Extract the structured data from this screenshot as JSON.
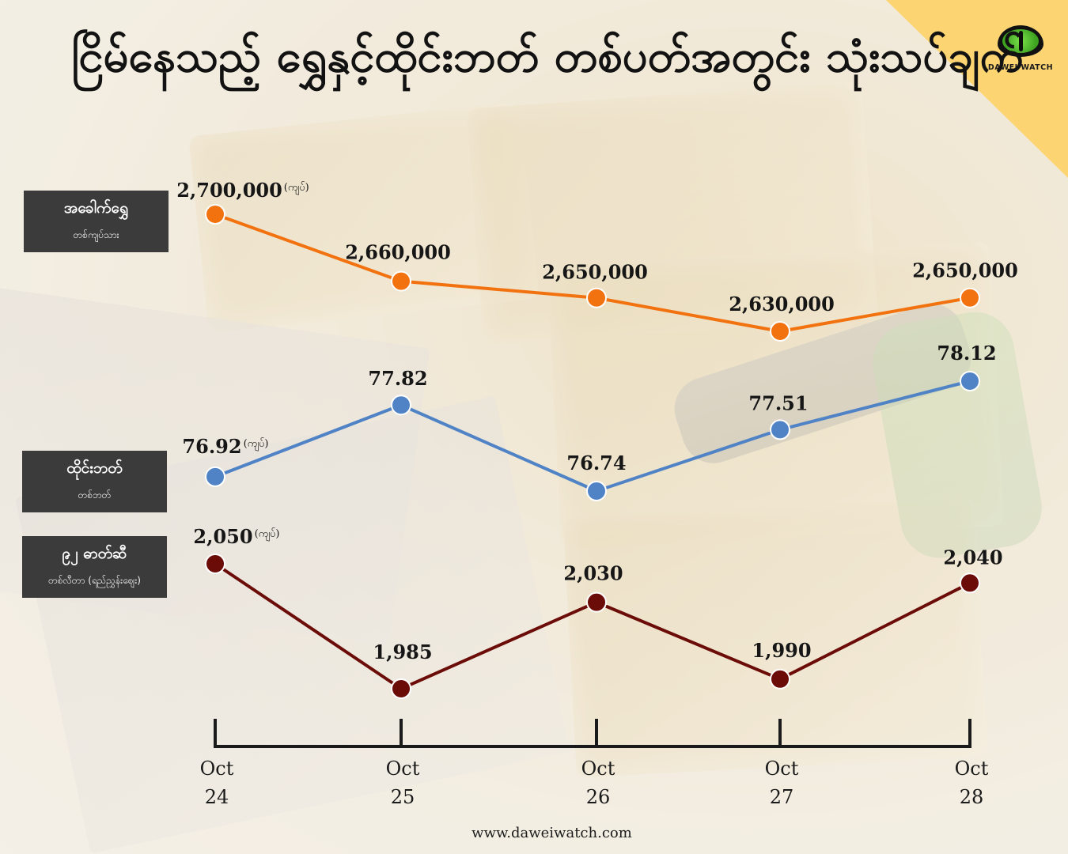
{
  "title": "ငြိမ်နေသည့် ရွှေနှင့်ထိုင်းဘတ် တစ်ပတ်အတွင်း သုံးသပ်ချက်",
  "brand": {
    "name": "DAWEI WATCH",
    "website": "www.daweiwatch.com",
    "accent_color": "#fcd572"
  },
  "unit_note": "(ကျပ်)",
  "series_boxes": [
    {
      "name": "အခေါက်ရွှေ",
      "unit": "တစ်ကျပ်သား"
    },
    {
      "name": "ထိုင်းဘတ်",
      "unit": "တစ်ဘတ်"
    },
    {
      "name": "၉၂ ဓာတ်ဆီ",
      "unit": "တစ်လီတာ (ရည်ညွှန်းဈေး)"
    }
  ],
  "chart_data": {
    "type": "line",
    "title": "ငြိမ်နေသည့် ရွှေနှင့်ထိုင်းဘတ် တစ်ပတ်အတွင်း သုံးသပ်ချက်",
    "x": [
      {
        "month": "Oct",
        "day": "24"
      },
      {
        "month": "Oct",
        "day": "25"
      },
      {
        "month": "Oct",
        "day": "26"
      },
      {
        "month": "Oct",
        "day": "27"
      },
      {
        "month": "Oct",
        "day": "28"
      }
    ],
    "series": [
      {
        "name": "အခေါက်ရွှေ",
        "color": "#f2720f",
        "values": [
          2700000,
          2660000,
          2650000,
          2630000,
          2650000
        ],
        "labels": [
          "2,700,000",
          "2,660,000",
          "2,650,000",
          "2,630,000",
          "2,650,000"
        ],
        "range": [
          2630000,
          2700000
        ]
      },
      {
        "name": "ထိုင်းဘတ်",
        "color": "#4f83c6",
        "values": [
          76.92,
          77.82,
          76.74,
          77.51,
          78.12
        ],
        "labels": [
          "76.92",
          "77.82",
          "76.74",
          "77.51",
          "78.12"
        ],
        "range": [
          76.74,
          78.12
        ]
      },
      {
        "name": "၉၂ ဓာတ်ဆီ",
        "color": "#6b0c08",
        "values": [
          2050,
          1985,
          2030,
          1990,
          2040
        ],
        "labels": [
          "2,050",
          "1,985",
          "2,030",
          "1,990",
          "2,040"
        ],
        "range": [
          1985,
          2050
        ]
      }
    ],
    "grid": false,
    "legend": "left"
  }
}
